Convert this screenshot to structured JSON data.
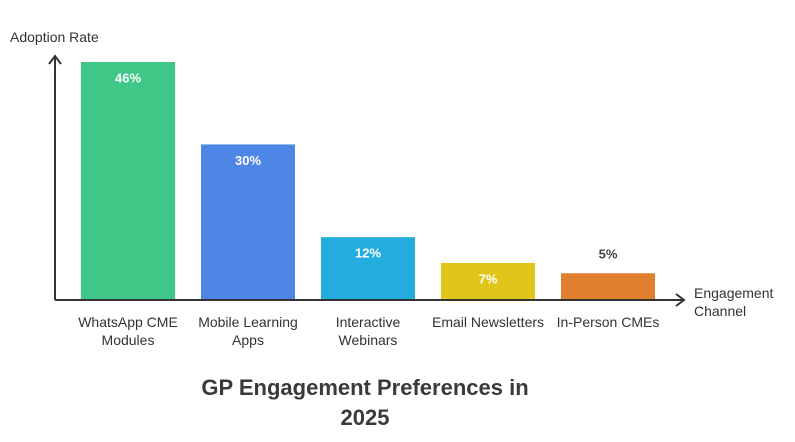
{
  "chart_data": {
    "type": "bar",
    "title": "GP Engagement Preferences in 2025",
    "y_label": "Adoption Rate",
    "x_label": "Engagement Channel",
    "categories": [
      "WhatsApp CME Modules",
      "Mobile Learning Apps",
      "Interactive Webinars",
      "Email Newsletters",
      "In-Person CMEs"
    ],
    "values": [
      46,
      30,
      12,
      7,
      5
    ],
    "value_labels": [
      "46%",
      "30%",
      "12%",
      "7%",
      "5%"
    ],
    "colors": [
      "#3ec786",
      "#4e86e5",
      "#23addf",
      "#e0c61b",
      "#e0802f"
    ]
  }
}
